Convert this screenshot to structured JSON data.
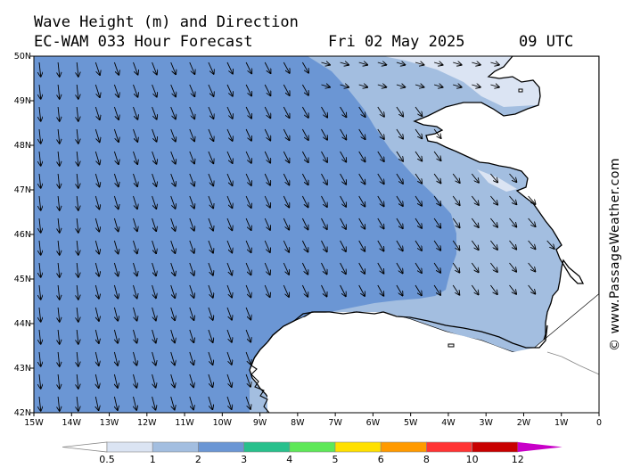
{
  "header": {
    "title_line1": "Wave Height (m) and Direction",
    "model_line": "EC-WAM 033 Hour Forecast",
    "date": "Fri 02 May 2025",
    "time": "09 UTC"
  },
  "map": {
    "lon_ticks": [
      "15W",
      "14W",
      "13W",
      "12W",
      "11W",
      "10W",
      "9W",
      "8W",
      "7W",
      "6W",
      "5W",
      "4W",
      "3W",
      "2W",
      "1W",
      "0"
    ],
    "lat_ticks": [
      "50N",
      "49N",
      "48N",
      "47N",
      "46N",
      "45N",
      "44N",
      "43N",
      "42N"
    ],
    "lon_range": [
      -15,
      0
    ],
    "lat_range": [
      42,
      50
    ],
    "zones": [
      {
        "name": "wave-zone-1-2m",
        "range": "1-2 m",
        "color": "#a3bee0"
      },
      {
        "name": "wave-zone-2-3m",
        "range": "2-3 m",
        "color": "#6b96d4"
      },
      {
        "name": "wave-zone-0.5-1m",
        "range": "0.5-1 m",
        "color": "#dbe4f3"
      }
    ],
    "land_color": "#ffffff",
    "arrow_color": "#000000"
  },
  "legend": {
    "labels": [
      "0.5",
      "1",
      "2",
      "3",
      "4",
      "5",
      "6",
      "8",
      "10",
      "12"
    ],
    "colors": [
      "#dbe4f3",
      "#a3bee0",
      "#6b96d4",
      "#28c08c",
      "#5ee858",
      "#ffe000",
      "#ff9a00",
      "#ff3434",
      "#c80000",
      "#c800c8"
    ]
  },
  "credit": "© www.PassageWeather.com"
}
